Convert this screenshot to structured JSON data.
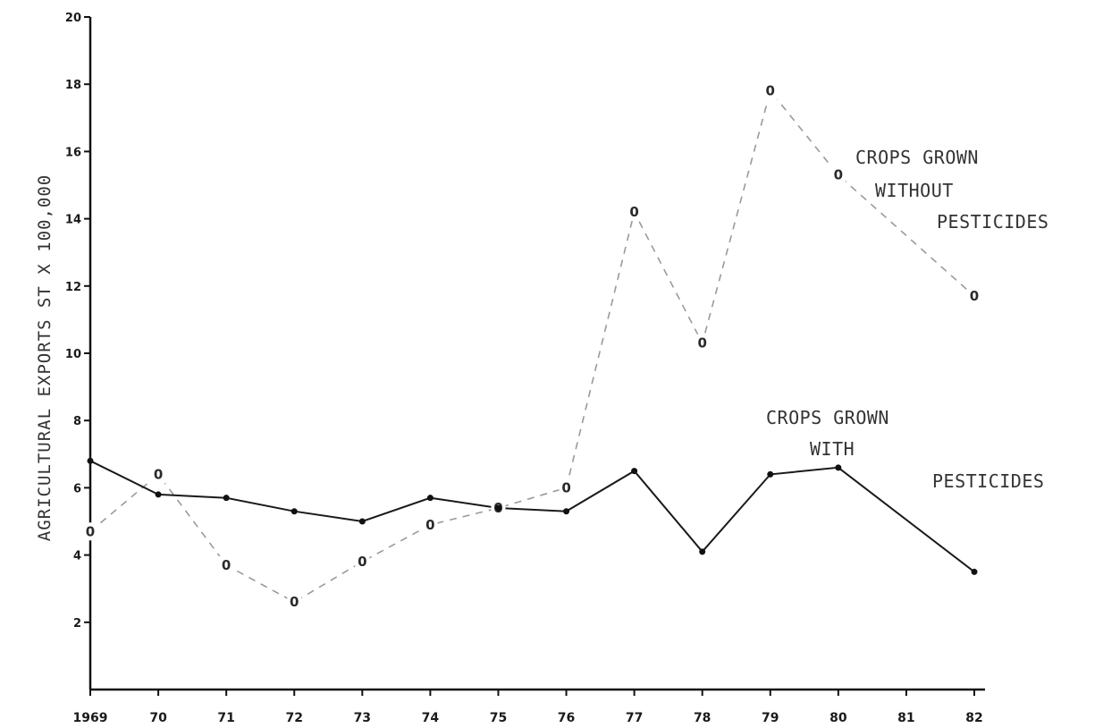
{
  "chart_data": {
    "type": "line",
    "title": "",
    "xlabel": "",
    "ylabel": "AGRICULTURAL EXPORTS ST X 100,000",
    "categories": [
      "1969",
      "70",
      "71",
      "72",
      "73",
      "74",
      "75",
      "76",
      "77",
      "78",
      "79",
      "80",
      "81",
      "82"
    ],
    "x": [
      1969,
      1970,
      1971,
      1972,
      1973,
      1974,
      1975,
      1976,
      1977,
      1978,
      1979,
      1980,
      1981,
      1982
    ],
    "ylim": [
      0,
      20
    ],
    "yticks": [
      {
        "value": 2,
        "label": "2"
      },
      {
        "value": 4,
        "label": "4"
      },
      {
        "value": 6,
        "label": "6"
      },
      {
        "value": 8,
        "label": "8"
      },
      {
        "value": 10,
        "label": "10"
      },
      {
        "value": 12,
        "label": "12"
      },
      {
        "value": 14,
        "label": "14"
      },
      {
        "value": 16,
        "label": "16"
      },
      {
        "value": 18,
        "label": "18"
      },
      {
        "value": 20,
        "label": "20"
      }
    ],
    "grid": false,
    "legend": "none (series labelled directly on the plot)",
    "series": [
      {
        "name": "CROPS GROWN WITHOUT PESTICIDES",
        "label_lines": [
          "CROPS GROWN",
          "WITHOUT",
          "PESTICIDES"
        ],
        "marker": "0",
        "line_style": "dashed/dotted",
        "points": [
          {
            "x": 1969,
            "y": 4.7
          },
          {
            "x": 1970,
            "y": 6.4
          },
          {
            "x": 1971,
            "y": 3.7
          },
          {
            "x": 1972,
            "y": 2.6
          },
          {
            "x": 1973,
            "y": 3.8
          },
          {
            "x": 1974,
            "y": 4.9
          },
          {
            "x": 1975,
            "y": 5.4
          },
          {
            "x": 1976,
            "y": 6.0
          },
          {
            "x": 1977,
            "y": 14.2
          },
          {
            "x": 1978,
            "y": 10.3
          },
          {
            "x": 1979,
            "y": 17.8
          },
          {
            "x": 1980,
            "y": 15.3
          },
          {
            "x": 1982,
            "y": 11.7
          }
        ]
      },
      {
        "name": "CROPS GROWN WITH PESTICIDES",
        "label_lines": [
          "CROPS GROWN",
          "WITH",
          "PESTICIDES"
        ],
        "marker": "dot",
        "line_style": "solid",
        "points": [
          {
            "x": 1969,
            "y": 6.8
          },
          {
            "x": 1970,
            "y": 5.8
          },
          {
            "x": 1971,
            "y": 5.7
          },
          {
            "x": 1972,
            "y": 5.3
          },
          {
            "x": 1973,
            "y": 5.0
          },
          {
            "x": 1974,
            "y": 5.7
          },
          {
            "x": 1975,
            "y": 5.4
          },
          {
            "x": 1976,
            "y": 5.3
          },
          {
            "x": 1977,
            "y": 6.5
          },
          {
            "x": 1978,
            "y": 4.1
          },
          {
            "x": 1979,
            "y": 6.4
          },
          {
            "x": 1980,
            "y": 6.6
          },
          {
            "x": 1982,
            "y": 3.5
          }
        ]
      }
    ]
  }
}
